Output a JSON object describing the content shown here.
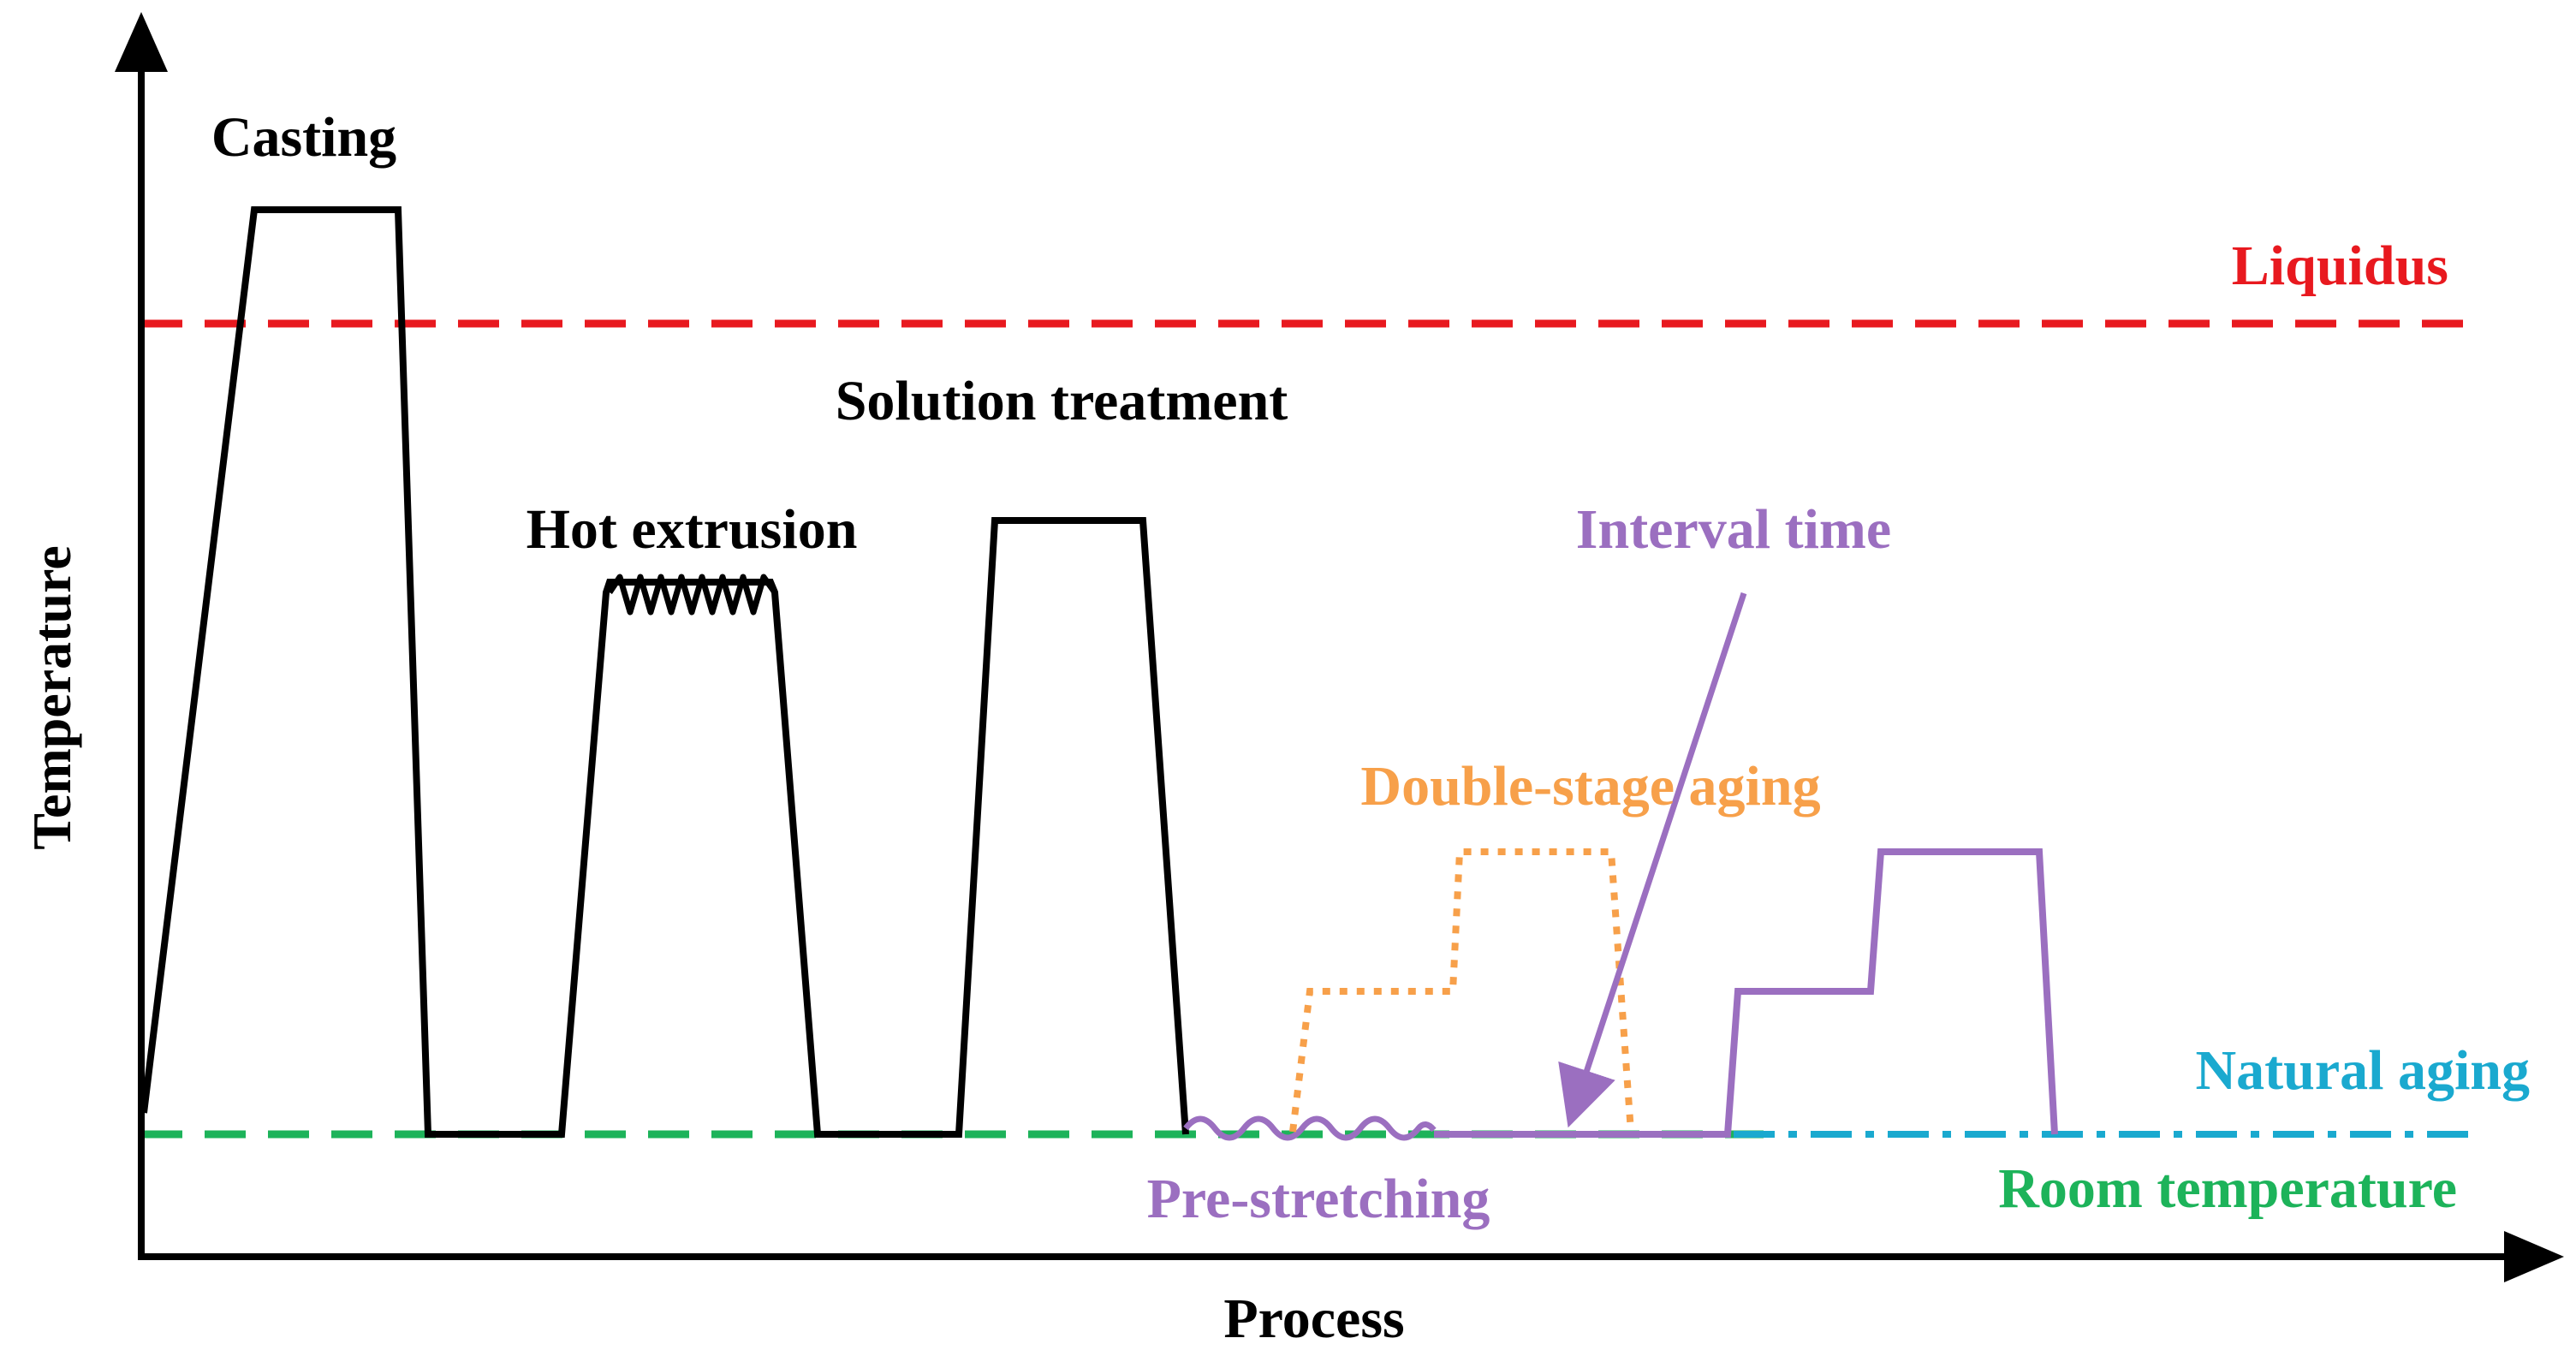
{
  "axes": {
    "y_label": "Temperature",
    "x_label": "Process"
  },
  "labels": {
    "casting": "Casting",
    "liquidus": "Liquidus",
    "solution_treatment": "Solution treatment",
    "hot_extrusion": "Hot extrusion",
    "interval_time": "Interval time",
    "double_stage_aging": "Double-stage aging",
    "natural_aging": "Natural aging",
    "pre_stretching": "Pre-stretching",
    "room_temperature": "Room temperature"
  },
  "colors": {
    "axis": "#000000",
    "process_line": "#000000",
    "liquidus": "#e8191f",
    "room_temperature": "#1db35a",
    "natural_aging": "#1aa9cf",
    "double_stage_aging": "#f7a04a",
    "interval_and_stretching": "#9b6fc0"
  }
}
